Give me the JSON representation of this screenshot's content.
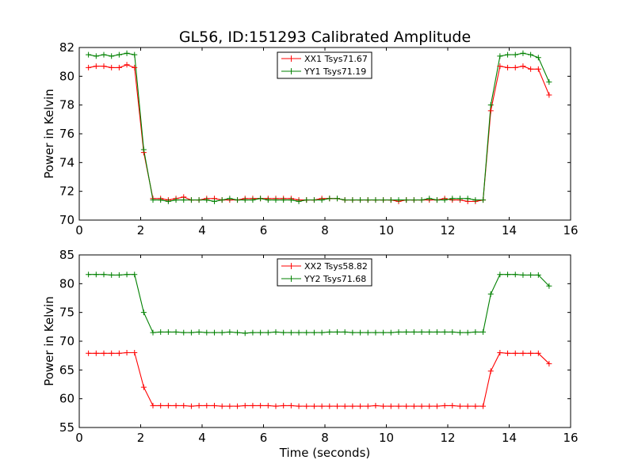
{
  "chart_data": [
    {
      "type": "line",
      "title": "GL56, ID:151293 Calibrated Amplitude",
      "xlabel": "",
      "ylabel": "Power in Kelvin",
      "xlim": [
        0,
        16
      ],
      "ylim": [
        70,
        82
      ],
      "xticks": [
        "0",
        "2",
        "4",
        "6",
        "8",
        "10",
        "12",
        "14",
        "16"
      ],
      "yticks": [
        "70",
        "72",
        "74",
        "76",
        "78",
        "80",
        "82"
      ],
      "legend_position": "top-center",
      "x": [
        0.3,
        0.55,
        0.8,
        1.05,
        1.3,
        1.55,
        1.8,
        2.1,
        2.4,
        2.65,
        2.9,
        3.15,
        3.4,
        3.65,
        3.9,
        4.15,
        4.4,
        4.65,
        4.9,
        5.15,
        5.4,
        5.65,
        5.9,
        6.15,
        6.4,
        6.65,
        6.9,
        7.15,
        7.4,
        7.65,
        7.9,
        8.15,
        8.4,
        8.65,
        8.9,
        9.15,
        9.4,
        9.65,
        9.9,
        10.15,
        10.4,
        10.65,
        10.9,
        11.15,
        11.4,
        11.65,
        11.9,
        12.15,
        12.4,
        12.65,
        12.9,
        13.15,
        13.4,
        13.7,
        13.95,
        14.2,
        14.45,
        14.7,
        14.95,
        15.3
      ],
      "series": [
        {
          "name": "XX1 Tsys71.67",
          "color": "#ff0000",
          "values": [
            80.6,
            80.7,
            80.7,
            80.6,
            80.6,
            80.8,
            80.6,
            74.7,
            71.5,
            71.5,
            71.4,
            71.5,
            71.6,
            71.4,
            71.4,
            71.5,
            71.5,
            71.4,
            71.4,
            71.4,
            71.5,
            71.5,
            71.5,
            71.5,
            71.5,
            71.5,
            71.5,
            71.4,
            71.4,
            71.4,
            71.5,
            71.5,
            71.5,
            71.4,
            71.4,
            71.4,
            71.4,
            71.4,
            71.4,
            71.4,
            71.3,
            71.4,
            71.4,
            71.4,
            71.4,
            71.4,
            71.5,
            71.4,
            71.4,
            71.3,
            71.3,
            71.4,
            77.6,
            80.7,
            80.6,
            80.6,
            80.7,
            80.5,
            80.5,
            78.7
          ]
        },
        {
          "name": "YY1 Tsys71.19",
          "color": "#008000",
          "values": [
            81.5,
            81.4,
            81.5,
            81.4,
            81.5,
            81.6,
            81.5,
            74.9,
            71.4,
            71.4,
            71.3,
            71.4,
            71.4,
            71.4,
            71.4,
            71.4,
            71.3,
            71.4,
            71.5,
            71.4,
            71.4,
            71.4,
            71.5,
            71.4,
            71.4,
            71.4,
            71.4,
            71.3,
            71.4,
            71.4,
            71.4,
            71.5,
            71.5,
            71.4,
            71.4,
            71.4,
            71.4,
            71.4,
            71.4,
            71.4,
            71.4,
            71.4,
            71.4,
            71.4,
            71.5,
            71.4,
            71.4,
            71.5,
            71.5,
            71.5,
            71.4,
            71.4,
            78.0,
            81.4,
            81.5,
            81.5,
            81.6,
            81.5,
            81.3,
            79.6
          ]
        }
      ]
    },
    {
      "type": "line",
      "title": "",
      "xlabel": "Time (seconds)",
      "ylabel": "Power in Kelvin",
      "xlim": [
        0,
        16
      ],
      "ylim": [
        55,
        85
      ],
      "xticks": [
        "0",
        "2",
        "4",
        "6",
        "8",
        "10",
        "12",
        "14",
        "16"
      ],
      "yticks": [
        "55",
        "60",
        "65",
        "70",
        "75",
        "80",
        "85"
      ],
      "legend_position": "top-center",
      "x": [
        0.3,
        0.55,
        0.8,
        1.05,
        1.3,
        1.55,
        1.8,
        2.1,
        2.4,
        2.65,
        2.9,
        3.15,
        3.4,
        3.65,
        3.9,
        4.15,
        4.4,
        4.65,
        4.9,
        5.15,
        5.4,
        5.65,
        5.9,
        6.15,
        6.4,
        6.65,
        6.9,
        7.15,
        7.4,
        7.65,
        7.9,
        8.15,
        8.4,
        8.65,
        8.9,
        9.15,
        9.4,
        9.65,
        9.9,
        10.15,
        10.4,
        10.65,
        10.9,
        11.15,
        11.4,
        11.65,
        11.9,
        12.15,
        12.4,
        12.65,
        12.9,
        13.15,
        13.4,
        13.7,
        13.95,
        14.2,
        14.45,
        14.7,
        14.95,
        15.3
      ],
      "series": [
        {
          "name": "XX2 Tsys58.82",
          "color": "#ff0000",
          "values": [
            67.9,
            67.9,
            67.9,
            67.9,
            67.9,
            68.0,
            68.0,
            62.0,
            58.8,
            58.8,
            58.8,
            58.8,
            58.8,
            58.7,
            58.8,
            58.8,
            58.8,
            58.7,
            58.7,
            58.7,
            58.8,
            58.8,
            58.8,
            58.8,
            58.7,
            58.8,
            58.8,
            58.7,
            58.7,
            58.7,
            58.7,
            58.7,
            58.7,
            58.7,
            58.7,
            58.7,
            58.7,
            58.8,
            58.7,
            58.7,
            58.7,
            58.7,
            58.7,
            58.7,
            58.7,
            58.7,
            58.8,
            58.8,
            58.7,
            58.7,
            58.7,
            58.7,
            64.8,
            68.0,
            67.9,
            67.9,
            67.9,
            67.9,
            67.9,
            66.1
          ]
        },
        {
          "name": "YY2 Tsys71.68",
          "color": "#008000",
          "values": [
            81.6,
            81.6,
            81.6,
            81.5,
            81.5,
            81.6,
            81.6,
            75.0,
            71.5,
            71.6,
            71.6,
            71.6,
            71.5,
            71.5,
            71.6,
            71.5,
            71.5,
            71.5,
            71.6,
            71.5,
            71.4,
            71.5,
            71.5,
            71.5,
            71.6,
            71.5,
            71.5,
            71.5,
            71.5,
            71.5,
            71.5,
            71.6,
            71.6,
            71.6,
            71.5,
            71.5,
            71.5,
            71.5,
            71.5,
            71.5,
            71.6,
            71.6,
            71.6,
            71.6,
            71.6,
            71.6,
            71.6,
            71.6,
            71.5,
            71.5,
            71.6,
            71.6,
            78.2,
            81.6,
            81.6,
            81.6,
            81.5,
            81.5,
            81.5,
            79.6
          ]
        }
      ]
    }
  ]
}
